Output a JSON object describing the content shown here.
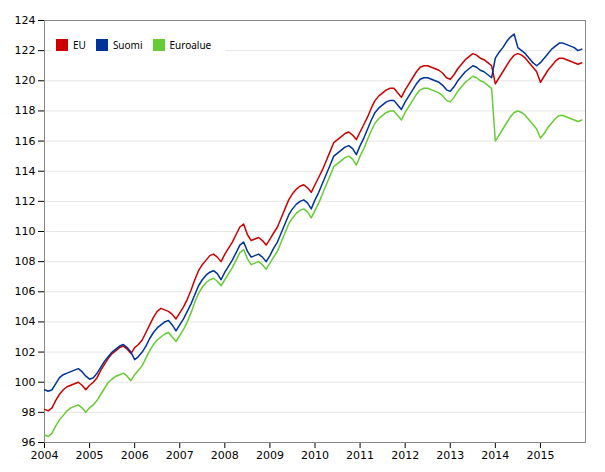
{
  "chart_data": {
    "type": "line",
    "x": [
      2004,
      2004.0833333333333,
      2004.1666666666667,
      2004.25,
      2004.3333333333333,
      2004.4166666666667,
      2004.5,
      2004.5833333333333,
      2004.6666666666667,
      2004.75,
      2004.8333333333333,
      2004.9166666666667,
      2005,
      2005.0833333333333,
      2005.1666666666667,
      2005.25,
      2005.3333333333333,
      2005.4166666666667,
      2005.5,
      2005.5833333333333,
      2005.6666666666667,
      2005.75,
      2005.8333333333333,
      2005.9166666666667,
      2006,
      2006.0833333333333,
      2006.1666666666667,
      2006.25,
      2006.3333333333333,
      2006.4166666666667,
      2006.5,
      2006.5833333333333,
      2006.6666666666667,
      2006.75,
      2006.8333333333333,
      2006.9166666666667,
      2007,
      2007.0833333333333,
      2007.1666666666667,
      2007.25,
      2007.3333333333333,
      2007.4166666666667,
      2007.5,
      2007.5833333333333,
      2007.6666666666667,
      2007.75,
      2007.8333333333333,
      2007.9166666666667,
      2008,
      2008.0833333333333,
      2008.1666666666667,
      2008.25,
      2008.3333333333333,
      2008.4166666666667,
      2008.5,
      2008.5833333333333,
      2008.6666666666667,
      2008.75,
      2008.8333333333333,
      2008.9166666666667,
      2009,
      2009.0833333333333,
      2009.1666666666667,
      2009.25,
      2009.3333333333333,
      2009.4166666666667,
      2009.5,
      2009.5833333333333,
      2009.6666666666667,
      2009.75,
      2009.8333333333333,
      2009.9166666666667,
      2010,
      2010.0833333333333,
      2010.1666666666667,
      2010.25,
      2010.3333333333333,
      2010.4166666666667,
      2010.5,
      2010.5833333333333,
      2010.6666666666667,
      2010.75,
      2010.8333333333333,
      2010.9166666666667,
      2011,
      2011.0833333333333,
      2011.1666666666667,
      2011.25,
      2011.3333333333333,
      2011.4166666666667,
      2011.5,
      2011.5833333333333,
      2011.6666666666667,
      2011.75,
      2011.8333333333333,
      2011.9166666666667,
      2012,
      2012.0833333333333,
      2012.1666666666667,
      2012.25,
      2012.3333333333333,
      2012.4166666666667,
      2012.5,
      2012.5833333333333,
      2012.6666666666667,
      2012.75,
      2012.8333333333333,
      2012.9166666666667,
      2013,
      2013.0833333333333,
      2013.1666666666667,
      2013.25,
      2013.3333333333333,
      2013.4166666666667,
      2013.5,
      2013.5833333333333,
      2013.6666666666667,
      2013.75,
      2013.8333333333333,
      2013.9166666666667,
      2014,
      2014.0833333333333,
      2014.1666666666667,
      2014.25,
      2014.3333333333333,
      2014.4166666666667,
      2014.5,
      2014.5833333333333,
      2014.6666666666667,
      2014.75,
      2014.8333333333333,
      2014.9166666666667,
      2015,
      2015.0833333333333,
      2015.1666666666667,
      2015.25,
      2015.3333333333333,
      2015.4166666666667,
      2015.5,
      2015.5833333333333,
      2015.6666666666667,
      2015.75,
      2015.8333333333333,
      2015.9166666666667
    ],
    "series": [
      {
        "name": "EU",
        "color": "#cc0000",
        "values": [
          98.2,
          98.1,
          98.3,
          98.8,
          99.2,
          99.5,
          99.7,
          99.8,
          99.9,
          100.0,
          99.8,
          99.5,
          99.8,
          100.0,
          100.3,
          100.8,
          101.2,
          101.6,
          101.9,
          102.1,
          102.3,
          102.4,
          102.2,
          101.9,
          102.3,
          102.5,
          102.8,
          103.3,
          103.8,
          104.3,
          104.7,
          104.9,
          104.8,
          104.7,
          104.5,
          104.2,
          104.6,
          105.0,
          105.5,
          106.1,
          106.8,
          107.4,
          107.8,
          108.1,
          108.4,
          108.5,
          108.3,
          108.0,
          108.5,
          108.9,
          109.3,
          109.8,
          110.3,
          110.5,
          109.8,
          109.4,
          109.5,
          109.6,
          109.4,
          109.1,
          109.5,
          109.9,
          110.3,
          110.9,
          111.5,
          112.1,
          112.5,
          112.8,
          113.0,
          113.1,
          112.9,
          112.6,
          113.1,
          113.6,
          114.1,
          114.7,
          115.3,
          115.9,
          116.1,
          116.3,
          116.5,
          116.6,
          116.4,
          116.1,
          116.6,
          117.1,
          117.6,
          118.2,
          118.7,
          119.0,
          119.2,
          119.4,
          119.5,
          119.5,
          119.2,
          118.9,
          119.4,
          119.8,
          120.2,
          120.6,
          120.9,
          121.0,
          121.0,
          120.9,
          120.8,
          120.7,
          120.5,
          120.2,
          120.1,
          120.4,
          120.8,
          121.1,
          121.4,
          121.6,
          121.8,
          121.7,
          121.5,
          121.4,
          121.2,
          121.0,
          119.8,
          120.2,
          120.6,
          121.0,
          121.4,
          121.7,
          121.8,
          121.7,
          121.5,
          121.2,
          120.9,
          120.6,
          119.9,
          120.3,
          120.7,
          121.0,
          121.3,
          121.5,
          121.5,
          121.4,
          121.3,
          121.2,
          121.1,
          121.2
        ]
      },
      {
        "name": "Suomi",
        "color": "#003399",
        "values": [
          99.5,
          99.4,
          99.5,
          99.9,
          100.3,
          100.5,
          100.6,
          100.7,
          100.8,
          100.9,
          100.7,
          100.4,
          100.2,
          100.3,
          100.6,
          101.0,
          101.4,
          101.7,
          102.0,
          102.2,
          102.4,
          102.5,
          102.3,
          102.0,
          101.5,
          101.7,
          102.0,
          102.4,
          102.9,
          103.3,
          103.6,
          103.8,
          104.0,
          104.1,
          103.8,
          103.4,
          103.8,
          104.2,
          104.7,
          105.2,
          105.8,
          106.4,
          106.8,
          107.1,
          107.3,
          107.4,
          107.2,
          106.8,
          107.3,
          107.7,
          108.1,
          108.6,
          109.1,
          109.3,
          108.7,
          108.3,
          108.4,
          108.5,
          108.3,
          108.0,
          108.4,
          108.9,
          109.3,
          109.9,
          110.5,
          111.1,
          111.5,
          111.8,
          112.0,
          112.1,
          111.9,
          111.5,
          112.1,
          112.6,
          113.2,
          113.8,
          114.4,
          115.0,
          115.2,
          115.4,
          115.6,
          115.7,
          115.5,
          115.1,
          115.7,
          116.2,
          116.8,
          117.4,
          117.9,
          118.2,
          118.4,
          118.6,
          118.7,
          118.7,
          118.4,
          118.1,
          118.6,
          119.0,
          119.4,
          119.8,
          120.1,
          120.2,
          120.2,
          120.1,
          120.0,
          119.9,
          119.7,
          119.4,
          119.3,
          119.6,
          120.0,
          120.3,
          120.6,
          120.8,
          121.0,
          120.9,
          120.7,
          120.6,
          120.4,
          120.2,
          121.5,
          121.9,
          122.2,
          122.6,
          122.9,
          123.1,
          122.2,
          122.0,
          121.8,
          121.5,
          121.2,
          121.0,
          121.2,
          121.5,
          121.8,
          122.1,
          122.3,
          122.5,
          122.5,
          122.4,
          122.3,
          122.2,
          122.0,
          122.1
        ]
      },
      {
        "name": "Euroalue",
        "color": "#66cc33",
        "values": [
          96.5,
          96.4,
          96.6,
          97.1,
          97.5,
          97.8,
          98.1,
          98.3,
          98.4,
          98.5,
          98.3,
          98.0,
          98.3,
          98.5,
          98.8,
          99.2,
          99.6,
          100.0,
          100.2,
          100.4,
          100.5,
          100.6,
          100.4,
          100.1,
          100.5,
          100.8,
          101.1,
          101.6,
          102.1,
          102.5,
          102.8,
          103.0,
          103.2,
          103.3,
          103.0,
          102.7,
          103.1,
          103.5,
          104.0,
          104.6,
          105.3,
          105.9,
          106.3,
          106.6,
          106.8,
          106.9,
          106.7,
          106.4,
          106.8,
          107.2,
          107.6,
          108.1,
          108.6,
          108.8,
          108.2,
          107.8,
          107.9,
          108.0,
          107.8,
          107.5,
          107.9,
          108.3,
          108.7,
          109.3,
          109.9,
          110.5,
          110.9,
          111.2,
          111.4,
          111.5,
          111.3,
          110.9,
          111.4,
          111.9,
          112.5,
          113.1,
          113.7,
          114.3,
          114.5,
          114.7,
          114.9,
          115.0,
          114.8,
          114.4,
          115.0,
          115.5,
          116.1,
          116.7,
          117.2,
          117.5,
          117.7,
          117.9,
          118.0,
          118.0,
          117.7,
          117.4,
          117.9,
          118.3,
          118.7,
          119.1,
          119.4,
          119.5,
          119.5,
          119.4,
          119.3,
          119.2,
          119.0,
          118.7,
          118.6,
          118.9,
          119.3,
          119.6,
          119.9,
          120.1,
          120.3,
          120.2,
          120.0,
          119.9,
          119.7,
          119.5,
          116.0,
          116.4,
          116.8,
          117.2,
          117.6,
          117.9,
          118.0,
          117.9,
          117.7,
          117.4,
          117.1,
          116.8,
          116.2,
          116.5,
          116.9,
          117.2,
          117.5,
          117.7,
          117.7,
          117.6,
          117.5,
          117.4,
          117.3,
          117.4
        ]
      }
    ],
    "xlim": [
      2004,
      2016
    ],
    "xticks": [
      2004,
      2005,
      2006,
      2007,
      2008,
      2009,
      2010,
      2011,
      2012,
      2013,
      2014,
      2015
    ],
    "ylim": [
      96,
      124
    ],
    "yticks": [
      96,
      98,
      100,
      102,
      104,
      106,
      108,
      110,
      112,
      114,
      116,
      118,
      120,
      122,
      124
    ],
    "grid": true,
    "legend": "upper left"
  }
}
